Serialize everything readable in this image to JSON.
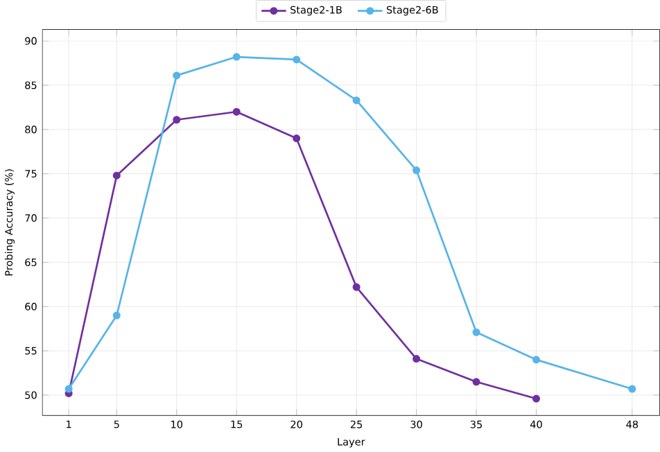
{
  "chart_data": {
    "type": "line",
    "xlabel": "Layer",
    "ylabel": "Probing Accuracy (%)",
    "xlim": [
      -1.2,
      50.3
    ],
    "ylim": [
      47.7,
      91.3
    ],
    "xticks": [
      1,
      5,
      10,
      15,
      20,
      25,
      30,
      35,
      40,
      48
    ],
    "yticks": [
      50,
      55,
      60,
      65,
      70,
      75,
      80,
      85,
      90
    ],
    "grid": true,
    "legend": "top",
    "marker": "circle",
    "line_style": "solid",
    "series": [
      {
        "name": "Stage2-1B",
        "color": "#7030a0",
        "x": [
          1,
          5,
          10,
          15,
          20,
          25,
          30,
          35,
          40
        ],
        "values": [
          50.2,
          74.8,
          81.1,
          82.0,
          79.0,
          62.2,
          54.1,
          51.5,
          49.6
        ]
      },
      {
        "name": "Stage2-6B",
        "color": "#56b4e9",
        "x": [
          1,
          5,
          10,
          15,
          20,
          25,
          30,
          35,
          40,
          48
        ],
        "values": [
          50.7,
          59.0,
          86.1,
          88.2,
          87.9,
          83.3,
          75.4,
          57.1,
          54.0,
          50.7
        ]
      }
    ]
  }
}
